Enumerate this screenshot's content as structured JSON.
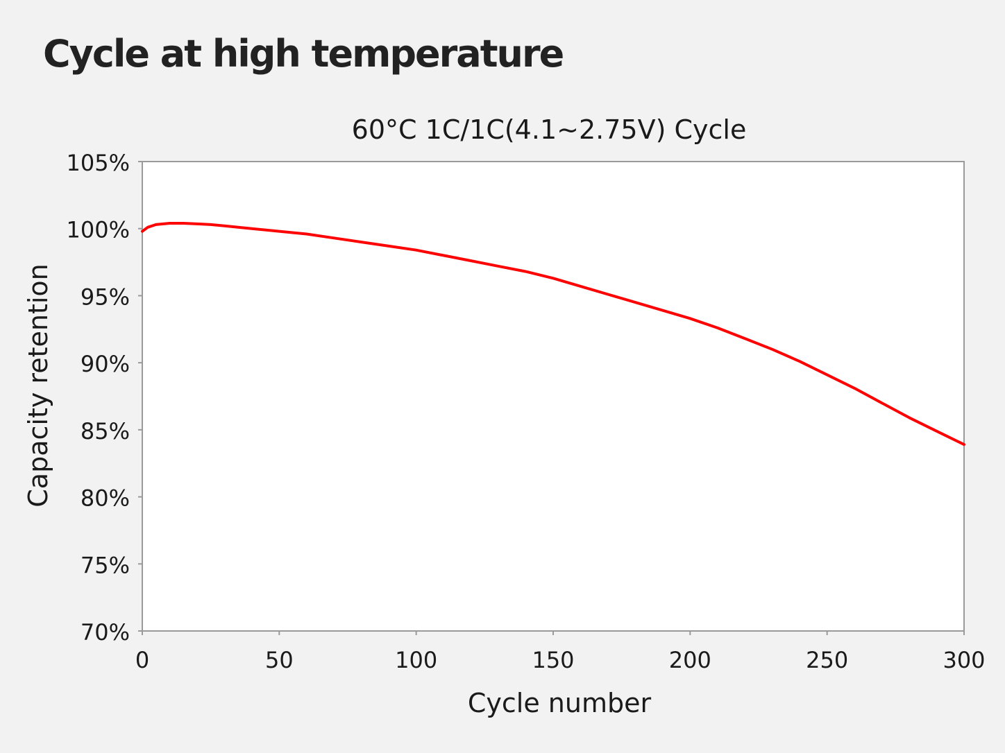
{
  "page": {
    "heading": "Cycle at high temperature"
  },
  "chart_data": {
    "type": "line",
    "title": "60°C 1C/1C(4.1~2.75V) Cycle",
    "xlabel": "Cycle number",
    "ylabel": "Capacity retention",
    "xlim": [
      0,
      300
    ],
    "ylim": [
      70,
      105
    ],
    "x_ticks": [
      0,
      50,
      100,
      150,
      200,
      250,
      300
    ],
    "x_tick_labels": [
      "0",
      "50",
      "100",
      "150",
      "200",
      "250",
      "300"
    ],
    "y_ticks": [
      70,
      75,
      80,
      85,
      90,
      95,
      100,
      105
    ],
    "y_tick_labels": [
      "70%",
      "75%",
      "80%",
      "85%",
      "90%",
      "95%",
      "100%",
      "105%"
    ],
    "grid": false,
    "legend": "none",
    "series": [
      {
        "color": "#ff0000",
        "x": [
          0,
          2,
          5,
          10,
          15,
          20,
          25,
          30,
          40,
          50,
          60,
          70,
          80,
          90,
          100,
          110,
          120,
          130,
          140,
          150,
          160,
          170,
          180,
          190,
          200,
          210,
          220,
          230,
          240,
          250,
          260,
          270,
          280,
          290,
          300
        ],
        "y": [
          99.8,
          100.1,
          100.3,
          100.4,
          100.4,
          100.35,
          100.3,
          100.2,
          100.0,
          99.8,
          99.6,
          99.3,
          99.0,
          98.7,
          98.4,
          98.0,
          97.6,
          97.2,
          96.8,
          96.3,
          95.7,
          95.1,
          94.5,
          93.9,
          93.3,
          92.6,
          91.8,
          91.0,
          90.1,
          89.1,
          88.1,
          87.0,
          85.9,
          84.9,
          83.9
        ]
      }
    ]
  }
}
